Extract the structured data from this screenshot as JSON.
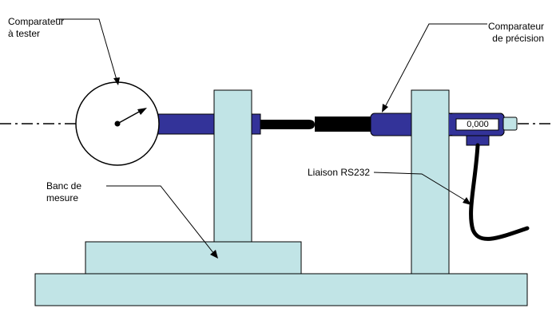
{
  "labels": {
    "tested_gauge": [
      "Comparateur",
      "à tester"
    ],
    "precision_gauge": [
      "Comparateur",
      "de précision"
    ],
    "rs232_link": "Liaison RS232",
    "bench": [
      "Banc de",
      "mesure"
    ]
  },
  "display": {
    "reading": "0,000"
  },
  "colors": {
    "bench": "#c1e4e6",
    "gauge_body": "#333399",
    "probe": "#000000",
    "outline": "#000000",
    "background": "#ffffff"
  },
  "icons": {
    "tested_gauge": "dial-gauge-icon",
    "precision_gauge": "digital-gauge-icon"
  }
}
